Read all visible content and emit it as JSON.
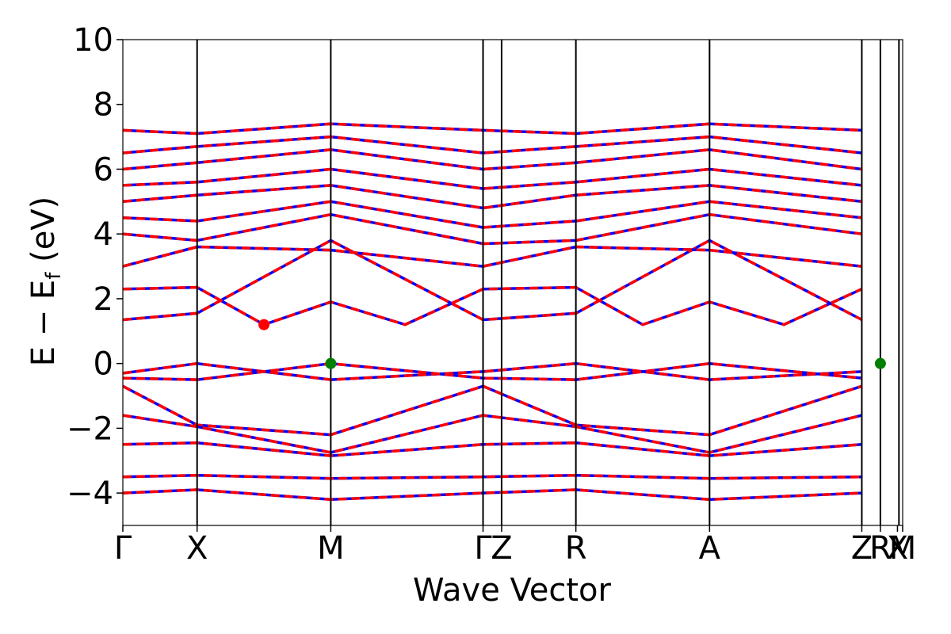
{
  "chart_data": {
    "type": "line",
    "title": "",
    "xlabel": "Wave Vector",
    "ylabel": "E − E",
    "ylabel_sub": "f",
    "ylabel_unit": " (eV)",
    "ylim": [
      -5,
      10
    ],
    "xlim": [
      0,
      10.5
    ],
    "y_ticks": [
      {
        "value": 10,
        "label": "10"
      },
      {
        "value": 8,
        "label": "8"
      },
      {
        "value": 6,
        "label": "6"
      },
      {
        "value": 4,
        "label": "4"
      },
      {
        "value": 2,
        "label": "2"
      },
      {
        "value": 0,
        "label": "0"
      },
      {
        "value": -2,
        "label": "−2"
      },
      {
        "value": -4,
        "label": "−4"
      }
    ],
    "kpoints": [
      {
        "label": "Γ",
        "x": 0.0
      },
      {
        "label": "X",
        "x": 1.0
      },
      {
        "label": "M",
        "x": 2.8
      },
      {
        "label": "Γ",
        "x": 4.85
      },
      {
        "label": "Z",
        "x": 5.1
      },
      {
        "label": "R",
        "x": 6.1
      },
      {
        "label": "A",
        "x": 7.9
      },
      {
        "label": "Z",
        "x": 9.95
      },
      {
        "label": "R",
        "x": 10.2
      },
      {
        "label": "X",
        "x": 10.43
      },
      {
        "label": "M",
        "x": 10.5
      }
    ],
    "kpoint_label_row": "Γ  X  M  ΓZ  R  A  ZR|X|AM",
    "vertical_lines_x": [
      1.0,
      2.8,
      4.85,
      5.1,
      6.1,
      7.9,
      9.95,
      10.2,
      10.45
    ],
    "series": [
      {
        "color": "#0000ff",
        "style": "solid"
      },
      {
        "color": "#ff0000",
        "style": "dashed"
      }
    ],
    "bands": [
      [
        {
          "x": 0.0,
          "y": -0.3
        },
        {
          "x": 1.0,
          "y": 0.0
        },
        {
          "x": 2.8,
          "y": -0.5
        },
        {
          "x": 4.85,
          "y": -0.25
        },
        {
          "x": 6.1,
          "y": 0.0
        },
        {
          "x": 7.9,
          "y": -0.5
        },
        {
          "x": 9.95,
          "y": -0.25
        }
      ],
      [
        {
          "x": 0.0,
          "y": -0.45
        },
        {
          "x": 1.0,
          "y": -0.5
        },
        {
          "x": 2.8,
          "y": 0.0
        },
        {
          "x": 4.85,
          "y": -0.45
        },
        {
          "x": 6.1,
          "y": -0.5
        },
        {
          "x": 7.9,
          "y": 0.0
        },
        {
          "x": 9.95,
          "y": -0.45
        }
      ],
      [
        {
          "x": 0.0,
          "y": -0.7
        },
        {
          "x": 1.0,
          "y": -1.9
        },
        {
          "x": 2.8,
          "y": -2.2
        },
        {
          "x": 4.85,
          "y": -0.7
        },
        {
          "x": 6.1,
          "y": -1.9
        },
        {
          "x": 7.9,
          "y": -2.2
        },
        {
          "x": 9.95,
          "y": -0.7
        }
      ],
      [
        {
          "x": 0.0,
          "y": -1.6
        },
        {
          "x": 1.0,
          "y": -1.95
        },
        {
          "x": 2.8,
          "y": -2.75
        },
        {
          "x": 4.85,
          "y": -1.6
        },
        {
          "x": 6.1,
          "y": -1.95
        },
        {
          "x": 7.9,
          "y": -2.75
        },
        {
          "x": 9.95,
          "y": -1.6
        }
      ],
      [
        {
          "x": 0.0,
          "y": -2.5
        },
        {
          "x": 1.0,
          "y": -2.45
        },
        {
          "x": 2.8,
          "y": -2.85
        },
        {
          "x": 4.85,
          "y": -2.5
        },
        {
          "x": 6.1,
          "y": -2.45
        },
        {
          "x": 7.9,
          "y": -2.85
        },
        {
          "x": 9.95,
          "y": -2.5
        }
      ],
      [
        {
          "x": 0.0,
          "y": -3.5
        },
        {
          "x": 1.0,
          "y": -3.45
        },
        {
          "x": 2.8,
          "y": -3.55
        },
        {
          "x": 4.85,
          "y": -3.5
        },
        {
          "x": 6.1,
          "y": -3.45
        },
        {
          "x": 7.9,
          "y": -3.55
        },
        {
          "x": 9.95,
          "y": -3.5
        }
      ],
      [
        {
          "x": 0.0,
          "y": -4.0
        },
        {
          "x": 1.0,
          "y": -3.9
        },
        {
          "x": 2.8,
          "y": -4.2
        },
        {
          "x": 4.85,
          "y": -4.0
        },
        {
          "x": 6.1,
          "y": -3.9
        },
        {
          "x": 7.9,
          "y": -4.2
        },
        {
          "x": 9.95,
          "y": -4.0
        }
      ],
      [
        {
          "x": 0.0,
          "y": 1.35
        },
        {
          "x": 1.0,
          "y": 1.55
        },
        {
          "x": 2.8,
          "y": 3.8
        },
        {
          "x": 4.85,
          "y": 1.35
        },
        {
          "x": 6.1,
          "y": 1.55
        },
        {
          "x": 7.9,
          "y": 3.8
        },
        {
          "x": 9.95,
          "y": 1.35
        }
      ],
      [
        {
          "x": 0.0,
          "y": 2.3
        },
        {
          "x": 1.0,
          "y": 2.35
        },
        {
          "x": 1.9,
          "y": 1.2
        },
        {
          "x": 2.8,
          "y": 1.9
        },
        {
          "x": 3.8,
          "y": 1.2
        },
        {
          "x": 4.85,
          "y": 2.3
        },
        {
          "x": 6.1,
          "y": 2.35
        },
        {
          "x": 7.0,
          "y": 1.2
        },
        {
          "x": 7.9,
          "y": 1.9
        },
        {
          "x": 8.9,
          "y": 1.2
        },
        {
          "x": 9.95,
          "y": 2.3
        }
      ],
      [
        {
          "x": 0.0,
          "y": 3.0
        },
        {
          "x": 1.0,
          "y": 3.6
        },
        {
          "x": 2.8,
          "y": 3.5
        },
        {
          "x": 4.85,
          "y": 3.0
        },
        {
          "x": 6.1,
          "y": 3.6
        },
        {
          "x": 7.9,
          "y": 3.5
        },
        {
          "x": 9.95,
          "y": 3.0
        }
      ],
      [
        {
          "x": 0.0,
          "y": 4.0
        },
        {
          "x": 1.0,
          "y": 3.8
        },
        {
          "x": 2.8,
          "y": 4.6
        },
        {
          "x": 4.85,
          "y": 3.7
        },
        {
          "x": 6.1,
          "y": 3.8
        },
        {
          "x": 7.9,
          "y": 4.6
        },
        {
          "x": 9.95,
          "y": 4.0
        }
      ],
      [
        {
          "x": 0.0,
          "y": 4.5
        },
        {
          "x": 1.0,
          "y": 4.4
        },
        {
          "x": 2.8,
          "y": 5.0
        },
        {
          "x": 4.85,
          "y": 4.2
        },
        {
          "x": 6.1,
          "y": 4.4
        },
        {
          "x": 7.9,
          "y": 5.0
        },
        {
          "x": 9.95,
          "y": 4.5
        }
      ],
      [
        {
          "x": 0.0,
          "y": 5.0
        },
        {
          "x": 1.0,
          "y": 5.2
        },
        {
          "x": 2.8,
          "y": 5.5
        },
        {
          "x": 4.85,
          "y": 4.8
        },
        {
          "x": 6.1,
          "y": 5.2
        },
        {
          "x": 7.9,
          "y": 5.5
        },
        {
          "x": 9.95,
          "y": 5.0
        }
      ],
      [
        {
          "x": 0.0,
          "y": 5.5
        },
        {
          "x": 1.0,
          "y": 5.6
        },
        {
          "x": 2.8,
          "y": 6.0
        },
        {
          "x": 4.85,
          "y": 5.4
        },
        {
          "x": 6.1,
          "y": 5.6
        },
        {
          "x": 7.9,
          "y": 6.0
        },
        {
          "x": 9.95,
          "y": 5.5
        }
      ],
      [
        {
          "x": 0.0,
          "y": 6.0
        },
        {
          "x": 1.0,
          "y": 6.2
        },
        {
          "x": 2.8,
          "y": 6.6
        },
        {
          "x": 4.85,
          "y": 6.0
        },
        {
          "x": 6.1,
          "y": 6.2
        },
        {
          "x": 7.9,
          "y": 6.6
        },
        {
          "x": 9.95,
          "y": 6.0
        }
      ],
      [
        {
          "x": 0.0,
          "y": 6.5
        },
        {
          "x": 1.0,
          "y": 6.7
        },
        {
          "x": 2.8,
          "y": 7.0
        },
        {
          "x": 4.85,
          "y": 6.5
        },
        {
          "x": 6.1,
          "y": 6.7
        },
        {
          "x": 7.9,
          "y": 7.0
        },
        {
          "x": 9.95,
          "y": 6.5
        }
      ],
      [
        {
          "x": 0.0,
          "y": 7.2
        },
        {
          "x": 1.0,
          "y": 7.1
        },
        {
          "x": 2.8,
          "y": 7.4
        },
        {
          "x": 4.85,
          "y": 7.2
        },
        {
          "x": 6.1,
          "y": 7.1
        },
        {
          "x": 7.9,
          "y": 7.4
        },
        {
          "x": 9.95,
          "y": 7.2
        }
      ]
    ],
    "markers": [
      {
        "x": 1.9,
        "y": 1.2,
        "color": "#ff0000"
      },
      {
        "x": 2.8,
        "y": 0.0,
        "color": "#007f00"
      },
      {
        "x": 10.2,
        "y": 0.0,
        "color": "#007f00"
      }
    ]
  }
}
